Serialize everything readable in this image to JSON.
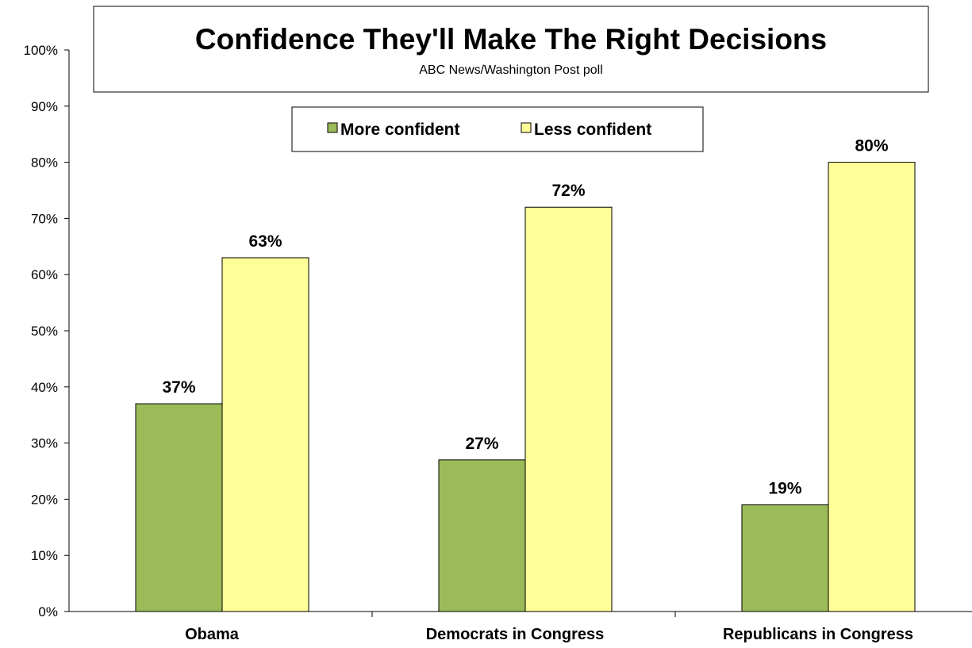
{
  "chart_data": {
    "type": "bar",
    "title": "Confidence They'll Make The Right Decisions",
    "subtitle": "ABC News/Washington  Post poll",
    "categories": [
      "Obama",
      "Democrats in Congress",
      "Republicans in Congress"
    ],
    "series": [
      {
        "name": "More confident",
        "values": [
          37,
          27,
          19
        ],
        "color": "#9BBB59"
      },
      {
        "name": "Less confident",
        "values": [
          63,
          72,
          80
        ],
        "color": "#FFFF99"
      }
    ],
    "data_labels": [
      [
        "37%",
        "27%",
        "19%"
      ],
      [
        "63%",
        "72%",
        "80%"
      ]
    ],
    "ylim": [
      0,
      100
    ],
    "yticks": [
      "0%",
      "10%",
      "20%",
      "30%",
      "40%",
      "50%",
      "60%",
      "70%",
      "80%",
      "90%",
      "100%"
    ],
    "legend_position": "top-center",
    "grid": false
  }
}
